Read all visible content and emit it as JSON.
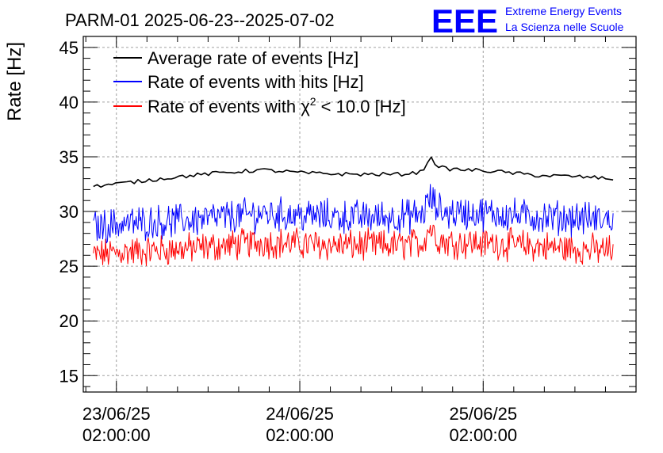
{
  "header": {
    "title": "PARM-01 2025-06-23--2025-07-02",
    "logo_text": "EEE",
    "org_line1": "Extreme Energy Events",
    "org_line2": "La Scienza nelle Scuole"
  },
  "colors": {
    "average": "#000000",
    "hits": "#0000ff",
    "chi2": "#ff0000",
    "logo": "#0000ff"
  },
  "chart_data": {
    "type": "line",
    "title": "PARM-01 2025-06-23--2025-07-02",
    "ylabel": "Rate [Hz]",
    "xlabel": "",
    "ylim": [
      13.5,
      46
    ],
    "xlim": [
      "2025-06-22 21:40",
      "2025-06-25 22:00"
    ],
    "grid": true,
    "legend_placement": "top-left",
    "y_ticks": [
      15,
      20,
      25,
      30,
      35,
      40,
      45
    ],
    "x_ticks": [
      {
        "at": "2025-06-23 02:00",
        "date": "23/06/25",
        "time": "02:00:00"
      },
      {
        "at": "2025-06-24 02:00",
        "date": "24/06/25",
        "time": "02:00:00"
      },
      {
        "at": "2025-06-25 02:00",
        "date": "25/06/25",
        "time": "02:00:00"
      }
    ],
    "series": [
      {
        "name": "Average rate of events [Hz]",
        "legend_prefix": "Average rate of events [Hz]",
        "legend_sup": "",
        "legend_suffix": "",
        "color": "#000000",
        "style": "smooth",
        "x": [
          "2025-06-22 23:00",
          "2025-06-23 03:00",
          "2025-06-23 09:00",
          "2025-06-23 15:00",
          "2025-06-23 21:00",
          "2025-06-24 03:00",
          "2025-06-24 09:00",
          "2025-06-24 15:00",
          "2025-06-24 18:00",
          "2025-06-24 19:00",
          "2025-06-24 20:00",
          "2025-06-24 21:00",
          "2025-06-25 03:00",
          "2025-06-25 09:00",
          "2025-06-25 14:00",
          "2025-06-25 19:00"
        ],
        "y": [
          32.3,
          32.6,
          33.1,
          33.5,
          33.8,
          33.5,
          33.4,
          33.4,
          33.6,
          35.0,
          34.2,
          33.9,
          33.7,
          33.3,
          33.2,
          33.0
        ]
      },
      {
        "name": "Rate of events with hits [Hz]",
        "legend_prefix": "Rate of events with hits [Hz]",
        "legend_sup": "",
        "legend_suffix": "",
        "color": "#0000ff",
        "style": "noisy",
        "x": [
          "2025-06-22 23:00",
          "2025-06-23 03:00",
          "2025-06-23 09:00",
          "2025-06-23 15:00",
          "2025-06-23 21:00",
          "2025-06-24 03:00",
          "2025-06-24 09:00",
          "2025-06-24 15:00",
          "2025-06-24 18:00",
          "2025-06-24 19:00",
          "2025-06-24 20:00",
          "2025-06-24 21:00",
          "2025-06-25 03:00",
          "2025-06-25 09:00",
          "2025-06-25 14:00",
          "2025-06-25 19:00"
        ],
        "y": [
          28.6,
          28.9,
          29.1,
          29.4,
          29.8,
          29.6,
          29.5,
          29.5,
          29.7,
          31.2,
          30.3,
          29.9,
          29.8,
          29.5,
          29.4,
          29.2
        ],
        "spread": 1.3
      },
      {
        "name": "Rate of events with χ2 < 10.0 [Hz]",
        "legend_prefix": "Rate of events with χ",
        "legend_sup": "2",
        "legend_suffix": " < 10.0 [Hz]",
        "color": "#ff0000",
        "style": "noisy",
        "x": [
          "2025-06-22 23:00",
          "2025-06-23 03:00",
          "2025-06-23 09:00",
          "2025-06-23 15:00",
          "2025-06-23 21:00",
          "2025-06-24 03:00",
          "2025-06-24 09:00",
          "2025-06-24 15:00",
          "2025-06-24 18:00",
          "2025-06-24 19:00",
          "2025-06-24 20:00",
          "2025-06-24 21:00",
          "2025-06-25 03:00",
          "2025-06-25 09:00",
          "2025-06-25 14:00",
          "2025-06-25 19:00"
        ],
        "y": [
          26.0,
          26.3,
          26.5,
          26.8,
          27.2,
          27.0,
          26.9,
          26.9,
          27.1,
          28.6,
          27.6,
          27.2,
          27.1,
          26.8,
          26.6,
          26.4
        ],
        "spread": 1.2
      }
    ]
  }
}
